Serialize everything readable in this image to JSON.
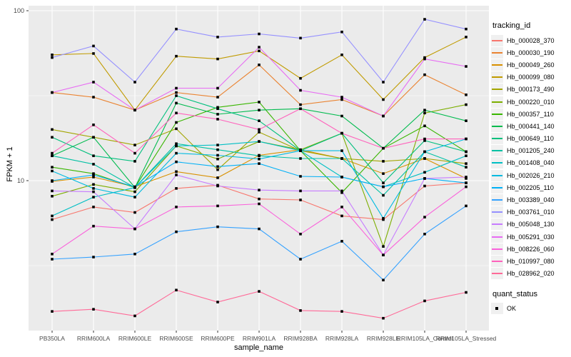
{
  "chart_data": {
    "type": "line",
    "title": "",
    "xlabel": "sample_name",
    "ylabel": "FPKM + 1",
    "y_scale": "log10",
    "ylim": [
      1.3,
      110
    ],
    "y_ticks": [
      {
        "label": "100",
        "value": 100
      },
      {
        "label": "10",
        "value": 10
      }
    ],
    "y_minor_gridlines": [
      3.162,
      31.62
    ],
    "panel_bg": "#ebebeb",
    "grid_color": "#ffffff",
    "point_shape": "square",
    "point_color": "#000000",
    "legend_position": "right",
    "categories": [
      "PB350LA",
      "RRIM600LA",
      "RRIM600LE",
      "RRIM600SE",
      "RRIM600PE",
      "RRIM901LA",
      "RRIM928BA",
      "RRIM928LA",
      "RRIM928LE",
      "RRIM105LA_Control",
      "RRIM105LA_Stressed"
    ],
    "series": [
      {
        "name": "Hb_000028_370",
        "color": "#F8766D",
        "values": [
          5.9,
          7.0,
          6.5,
          9.0,
          9.4,
          7.8,
          7.7,
          6.2,
          5.9,
          9.3,
          9.7
        ]
      },
      {
        "name": "Hb_000030_190",
        "color": "#EA8331",
        "values": [
          33,
          31,
          26,
          33,
          31,
          48,
          28,
          30,
          24,
          42,
          32
        ]
      },
      {
        "name": "Hb_000049_260",
        "color": "#D89000",
        "values": [
          9.9,
          10.5,
          9.2,
          11.3,
          10.4,
          14.1,
          15.2,
          13.5,
          11.0,
          13.5,
          10.3
        ]
      },
      {
        "name": "Hb_000099_080",
        "color": "#C09B00",
        "values": [
          55,
          56,
          26,
          54,
          52,
          58,
          40,
          55,
          30,
          53,
          70
        ]
      },
      {
        "name": "Hb_000173_490",
        "color": "#A3A500",
        "values": [
          20,
          18,
          16.2,
          20.2,
          11.6,
          19.3,
          15.0,
          13.5,
          13.0,
          13.5,
          12.6
        ]
      },
      {
        "name": "Hb_000220_010",
        "color": "#7CAE00",
        "values": [
          8.1,
          9.5,
          8.6,
          16.0,
          13.4,
          17.0,
          15.2,
          19.0,
          4.1,
          25,
          28
        ]
      },
      {
        "name": "Hb_000357_110",
        "color": "#39B600",
        "values": [
          12.0,
          11.0,
          9.1,
          22,
          27,
          29,
          15.0,
          8.5,
          15.5,
          21,
          14.8
        ]
      },
      {
        "name": "Hb_000441_140",
        "color": "#00BB4E",
        "values": [
          14.0,
          18.0,
          9.1,
          28.6,
          24.6,
          26,
          26.5,
          24,
          15.5,
          26,
          22.5
        ]
      },
      {
        "name": "Hb_000649_110",
        "color": "#00BF7D",
        "values": [
          18.0,
          14.0,
          13.0,
          31.6,
          26.5,
          22.5,
          15.0,
          19.0,
          9.7,
          17.2,
          14.8
        ]
      },
      {
        "name": "Hb_001205_240",
        "color": "#00C1A3",
        "values": [
          14.0,
          12.5,
          9.1,
          16.5,
          15.2,
          14.0,
          13.5,
          13.5,
          8.2,
          14.8,
          12.0
        ]
      },
      {
        "name": "Hb_001408_040",
        "color": "#00BFC4",
        "values": [
          6.2,
          8.0,
          9.1,
          16.0,
          16.2,
          17.0,
          15.0,
          10.5,
          9.2,
          11.2,
          14.0
        ]
      },
      {
        "name": "Hb_002026_210",
        "color": "#00BAE0",
        "values": [
          11.4,
          9.0,
          8.0,
          14.5,
          14.1,
          13.4,
          15.0,
          15.0,
          6.0,
          14.8,
          17.6
        ]
      },
      {
        "name": "Hb_002205_110",
        "color": "#00B0F6",
        "values": [
          10.0,
          10.8,
          9.2,
          12.9,
          12.1,
          12.6,
          10.6,
          10.5,
          9.2,
          10.3,
          9.7
        ]
      },
      {
        "name": "Hb_003389_040",
        "color": "#35A2FF",
        "values": [
          3.45,
          3.55,
          3.7,
          5.0,
          5.35,
          5.2,
          3.45,
          4.4,
          2.6,
          4.85,
          7.1
        ]
      },
      {
        "name": "Hb_003761_010",
        "color": "#9590FF",
        "values": [
          53,
          62,
          38,
          78,
          70,
          73,
          69,
          75,
          38,
          89,
          78
        ]
      },
      {
        "name": "Hb_005048_130",
        "color": "#C77CFF",
        "values": [
          8.7,
          8.6,
          5.2,
          10.8,
          9.3,
          8.8,
          8.7,
          8.7,
          3.65,
          10.3,
          10.5
        ]
      },
      {
        "name": "Hb_005291_030",
        "color": "#E76BF3",
        "values": [
          33,
          38,
          26,
          35,
          35,
          61,
          34,
          31,
          24,
          52,
          47
        ]
      },
      {
        "name": "Hb_008226_060",
        "color": "#FA62DB",
        "values": [
          3.7,
          5.4,
          5.2,
          7.0,
          7.1,
          7.3,
          4.85,
          7.0,
          3.65,
          6.1,
          9.2
        ]
      },
      {
        "name": "Hb_010997_080",
        "color": "#FF62BC",
        "values": [
          14.5,
          21.3,
          14.5,
          25,
          23,
          20,
          26.5,
          19,
          15.5,
          17.6,
          17.6
        ]
      },
      {
        "name": "Hb_028962_020",
        "color": "#FF6A98",
        "values": [
          1.7,
          1.75,
          1.6,
          2.27,
          1.93,
          2.23,
          1.72,
          1.7,
          1.55,
          1.96,
          2.2
        ]
      }
    ],
    "legends": [
      {
        "title": "tracking_id"
      },
      {
        "title": "quant_status",
        "items": [
          {
            "label": "OK"
          }
        ]
      }
    ]
  }
}
